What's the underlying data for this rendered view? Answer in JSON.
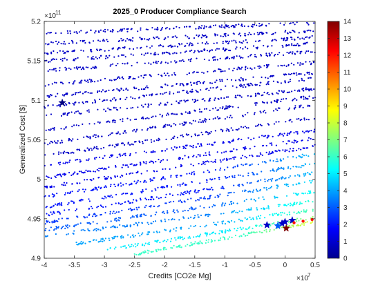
{
  "chart_data": {
    "type": "scatter",
    "title": "2025_0 Producer Compliance Search",
    "xlabel": "Credits [CO2e Mg]",
    "ylabel": "Generalized Cost [$]",
    "x_exponent_label": "×10",
    "x_exponent": "7",
    "y_exponent_label": "×10",
    "y_exponent": "11",
    "xlim": [
      -4,
      0.5
    ],
    "ylim": [
      4.9,
      5.2
    ],
    "xticks": [
      -4,
      -3.5,
      -3,
      -2.5,
      -2,
      -1.5,
      -1,
      -0.5,
      0,
      0.5
    ],
    "xtick_labels": [
      "-4",
      "-3.5",
      "-3",
      "-2.5",
      "-2",
      "-1.5",
      "-1",
      "-0.5",
      "0",
      "0.5"
    ],
    "yticks": [
      4.9,
      4.95,
      5.0,
      5.05,
      5.1,
      5.15,
      5.2
    ],
    "ytick_labels": [
      "4.9",
      "4.95",
      "5",
      "5.05",
      "5.1",
      "5.15",
      "5.2"
    ],
    "colorbar": {
      "range": [
        0,
        14
      ],
      "ticks": [
        0,
        1,
        2,
        3,
        4,
        5,
        6,
        7,
        8,
        9,
        10,
        11,
        12,
        13,
        14
      ],
      "tick_labels": [
        "0",
        "1",
        "2",
        "3",
        "4",
        "5",
        "6",
        "7",
        "8",
        "9",
        "10",
        "11",
        "12",
        "13",
        "14"
      ],
      "colormap": "jet"
    },
    "point_bands": [
      {
        "x0": -4,
        "y0": 5.185,
        "x1": 0.5,
        "y1": 5.198,
        "c": 1
      },
      {
        "x0": -4,
        "y0": 5.172,
        "x1": 0.5,
        "y1": 5.188,
        "c": 1
      },
      {
        "x0": -4,
        "y0": 5.16,
        "x1": 0.5,
        "y1": 5.18,
        "c": 1
      },
      {
        "x0": -4,
        "y0": 5.15,
        "x1": 0.5,
        "y1": 5.172,
        "c": 1
      },
      {
        "x0": -4,
        "y0": 5.138,
        "x1": 0.5,
        "y1": 5.162,
        "c": 1
      },
      {
        "x0": -4,
        "y0": 5.12,
        "x1": 0.5,
        "y1": 5.148,
        "c": 1
      },
      {
        "x0": -4,
        "y0": 5.105,
        "x1": 0.5,
        "y1": 5.135,
        "c": 1
      },
      {
        "x0": -4,
        "y0": 5.092,
        "x1": 0.5,
        "y1": 5.128,
        "c": 1
      },
      {
        "x0": -4,
        "y0": 5.08,
        "x1": 0.5,
        "y1": 5.115,
        "c": 1
      },
      {
        "x0": -4,
        "y0": 5.062,
        "x1": 0.5,
        "y1": 5.105,
        "c": 1
      },
      {
        "x0": -4,
        "y0": 5.045,
        "x1": 0.5,
        "y1": 5.095,
        "c": 1
      },
      {
        "x0": -4,
        "y0": 5.03,
        "x1": 0.5,
        "y1": 5.078,
        "c": 1
      },
      {
        "x0": -4,
        "y0": 5.018,
        "x1": 0.5,
        "y1": 5.062,
        "c": 1.5
      },
      {
        "x0": -4,
        "y0": 5.002,
        "x1": 0.5,
        "y1": 5.052,
        "c": 1.5
      },
      {
        "x0": -4,
        "y0": 4.99,
        "x1": 0.5,
        "y1": 5.042,
        "c": 1.5
      },
      {
        "x0": -4,
        "y0": 4.978,
        "x1": 0.5,
        "y1": 5.032,
        "c": 2
      },
      {
        "x0": -4,
        "y0": 4.965,
        "x1": 0.5,
        "y1": 5.02,
        "c": 2
      },
      {
        "x0": -4,
        "y0": 4.955,
        "x1": 0.5,
        "y1": 5.008,
        "c": 2
      },
      {
        "x0": -4,
        "y0": 4.945,
        "x1": 0.5,
        "y1": 4.998,
        "c": 2.5
      },
      {
        "x0": -4,
        "y0": 4.936,
        "x1": 0.5,
        "y1": 4.985,
        "c": 3
      },
      {
        "x0": -4,
        "y0": 4.928,
        "x1": 0.5,
        "y1": 4.972,
        "c": 3.5
      },
      {
        "x0": -3.5,
        "y0": 4.918,
        "x1": 0.5,
        "y1": 4.962,
        "c": 4
      },
      {
        "x0": -3.0,
        "y0": 4.91,
        "x1": 0.5,
        "y1": 4.952,
        "c": 5
      },
      {
        "x0": -2.5,
        "y0": 4.905,
        "x1": 0.5,
        "y1": 4.946,
        "c": 6
      }
    ],
    "highlight_points": [
      {
        "x": -0.3,
        "y": 4.942,
        "c": 1,
        "marker": "star"
      },
      {
        "x": -0.05,
        "y": 4.944,
        "c": 1,
        "marker": "star"
      },
      {
        "x": 0.0,
        "y": 4.946,
        "c": 1,
        "marker": "star"
      },
      {
        "x": 0.12,
        "y": 4.948,
        "c": 1,
        "marker": "star"
      },
      {
        "x": -0.12,
        "y": 4.941,
        "c": 3,
        "marker": "star"
      },
      {
        "x": 0.02,
        "y": 4.938,
        "c": 14,
        "marker": "star"
      },
      {
        "x": -3.7,
        "y": 5.097,
        "c": 0,
        "marker": "star"
      },
      {
        "x": 0.15,
        "y": 4.945,
        "c": 12,
        "marker": "dot-line"
      },
      {
        "x": 0.3,
        "y": 4.947,
        "c": 12,
        "marker": "dot-line"
      },
      {
        "x": 0.45,
        "y": 4.949,
        "c": 12,
        "marker": "dot-line"
      }
    ]
  }
}
